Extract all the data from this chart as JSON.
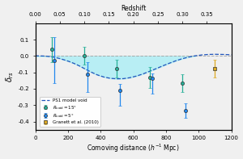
{
  "title_top": "Redshift",
  "xlabel": "Comoving distance ($h^{-1}$ Mpc)",
  "ylabel": "$\\delta_{rs}$",
  "xlim": [
    0,
    1200
  ],
  "ylim": [
    -0.45,
    0.2
  ],
  "top_xticks": [
    0.0,
    0.05,
    0.1,
    0.15,
    0.2,
    0.25,
    0.3,
    0.35
  ],
  "bottom_xticks": [
    0,
    200,
    400,
    600,
    800,
    1000,
    1200
  ],
  "yticks": [
    -0.4,
    -0.3,
    -0.2,
    -0.1,
    0.0,
    0.1
  ],
  "background_color": "#f0f0f0",
  "cyan_fill_color": "#b8eef4",
  "dashed_line_color": "#2255bb",
  "data_r15": {
    "x": [
      100,
      300,
      500,
      700,
      900
    ],
    "y": [
      0.04,
      0.003,
      -0.075,
      -0.13,
      -0.165
    ],
    "yerr_lo": [
      0.075,
      0.055,
      0.055,
      0.065,
      0.055
    ],
    "yerr_hi": [
      0.075,
      0.055,
      0.055,
      0.065,
      0.055
    ],
    "color": "#26b098",
    "marker": "o"
  },
  "data_r5": {
    "x": [
      100,
      300,
      500,
      700,
      900
    ],
    "y": [
      -0.025,
      -0.112,
      -0.21,
      -0.135,
      -0.335
    ],
    "yerr_lo": [
      0.14,
      0.11,
      0.095,
      0.095,
      0.045
    ],
    "yerr_hi": [
      0.14,
      0.075,
      0.04,
      0.03,
      0.045
    ],
    "color": "#2288ee",
    "marker": "o"
  },
  "granett": {
    "x": [
      1100
    ],
    "y": [
      -0.075
    ],
    "yerr_lo": [
      0.055
    ],
    "yerr_hi": [
      0.055
    ],
    "color": "#ddaa22",
    "marker": "s"
  },
  "void_model_x": [
    0,
    30,
    60,
    90,
    120,
    150,
    180,
    210,
    240,
    270,
    300,
    340,
    380,
    420,
    460,
    500,
    540,
    580,
    620,
    660,
    700,
    740,
    780,
    820,
    860,
    900,
    940,
    980,
    1020,
    1060,
    1100,
    1150,
    1200
  ],
  "void_model_y": [
    0.002,
    0.001,
    0.0,
    -0.003,
    -0.008,
    -0.015,
    -0.024,
    -0.034,
    -0.046,
    -0.06,
    -0.076,
    -0.097,
    -0.115,
    -0.128,
    -0.136,
    -0.139,
    -0.138,
    -0.132,
    -0.122,
    -0.109,
    -0.093,
    -0.077,
    -0.06,
    -0.044,
    -0.029,
    -0.016,
    -0.006,
    0.002,
    0.007,
    0.01,
    0.011,
    0.01,
    0.008
  ]
}
